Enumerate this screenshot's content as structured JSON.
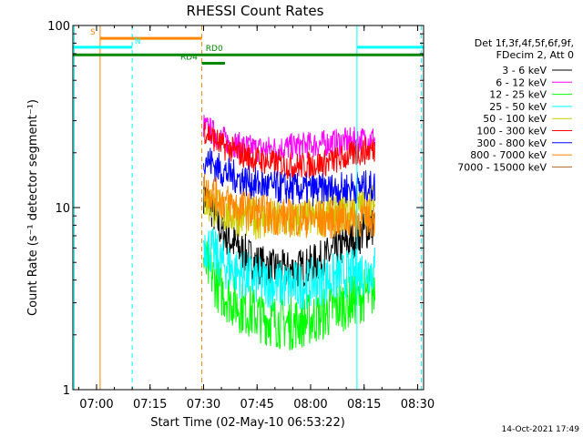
{
  "chart_data": {
    "type": "line",
    "title": "RHESSI Count Rates",
    "xlabel": "Start Time (02-May-10 06:53:22)",
    "ylabel": "Count Rate (s⁻¹ detector segment⁻¹)",
    "y_scale": "log",
    "ylim": [
      1,
      100
    ],
    "xlim": [
      "06:53:22",
      "08:31:40"
    ],
    "x_ticks": [
      "07:00",
      "07:15",
      "07:30",
      "07:45",
      "08:00",
      "08:15",
      "08:30"
    ],
    "y_ticks": [
      "1",
      "10",
      "100"
    ],
    "grid": false,
    "legend_placement": "right",
    "legend_header": [
      "Det 1f,3f,4f,5f,6f,9f,",
      "FDecim 2, Att 0"
    ],
    "footer_date": "14-Oct-2021 17:49",
    "data_window": [
      "07:30:00",
      "08:18:00"
    ],
    "series": [
      {
        "name": "3 - 6 keV",
        "color": "#000000",
        "values": [
          12.0,
          7.5,
          6.0,
          5.0,
          4.6,
          4.5,
          4.7,
          5.2,
          6.0,
          7.0,
          8.0
        ]
      },
      {
        "name": "6 - 12 keV",
        "color": "#ff00ff",
        "values": [
          28.0,
          24.0,
          22.0,
          21.0,
          21.0,
          21.5,
          22.0,
          22.5,
          23.0,
          23.5,
          24.0
        ]
      },
      {
        "name": "12 - 25 keV",
        "color": "#00ff00",
        "values": [
          5.0,
          3.5,
          2.9,
          2.6,
          2.4,
          2.3,
          2.4,
          2.6,
          2.9,
          3.2,
          3.5
        ]
      },
      {
        "name": "25 - 50 keV",
        "color": "#00ffff",
        "values": [
          6.5,
          5.0,
          4.4,
          4.0,
          3.8,
          3.7,
          3.8,
          4.0,
          4.2,
          4.4,
          4.6
        ]
      },
      {
        "name": "50 - 100 keV",
        "color": "#cccc00",
        "values": [
          11.0,
          9.5,
          9.0,
          8.7,
          8.5,
          8.5,
          8.7,
          9.0,
          9.5,
          10.0,
          10.5
        ]
      },
      {
        "name": "100 - 300 keV",
        "color": "#ff0000",
        "values": [
          27.0,
          22.0,
          20.0,
          18.5,
          17.5,
          17.0,
          17.0,
          17.5,
          18.5,
          20.0,
          21.0
        ]
      },
      {
        "name": "300 - 800 keV",
        "color": "#0000ff",
        "values": [
          19.0,
          16.0,
          14.5,
          13.5,
          13.0,
          12.7,
          12.5,
          12.5,
          12.7,
          13.0,
          13.0
        ]
      },
      {
        "name": "800 - 7000 keV",
        "color": "#ff8800",
        "values": [
          13.0,
          11.0,
          10.0,
          9.5,
          9.0,
          8.8,
          8.7,
          8.6,
          8.6,
          8.7,
          8.8
        ]
      },
      {
        "name": "7000 - 15000 keV",
        "color": "#aa6622",
        "values": []
      }
    ],
    "flag_bars": [
      {
        "label": "S",
        "color": "#ff8800",
        "x_start": "07:01:00",
        "x_end": "07:29:30",
        "y": 85
      },
      {
        "label": "N",
        "color": "#00ffff",
        "x_start": "06:53:22",
        "x_end": "07:10:00",
        "y": 76
      },
      {
        "label": "N",
        "color": "#00ffff",
        "x_start": "08:13:00",
        "x_end": "08:31:40",
        "y": 76
      },
      {
        "label": "RD0",
        "color": "#008800",
        "x_start": "06:53:22",
        "x_end": "08:31:40",
        "y": 69
      },
      {
        "label": "RD4",
        "color": "#008800",
        "x_start": "07:29:30",
        "x_end": "07:36:00",
        "y": 62
      }
    ],
    "vertical_lines": [
      {
        "x": "06:53:45",
        "color": "#00ffff",
        "style": "solid"
      },
      {
        "x": "07:01:00",
        "color": "#ff8800",
        "style": "solid"
      },
      {
        "x": "07:10:00",
        "color": "#00ffff",
        "style": "dashed"
      },
      {
        "x": "07:29:30",
        "color": "#ff8800",
        "style": "dashed"
      },
      {
        "x": "08:13:00",
        "color": "#00ffff",
        "style": "solid"
      },
      {
        "x": "08:31:00",
        "color": "#00ffff",
        "style": "dashed"
      }
    ]
  }
}
